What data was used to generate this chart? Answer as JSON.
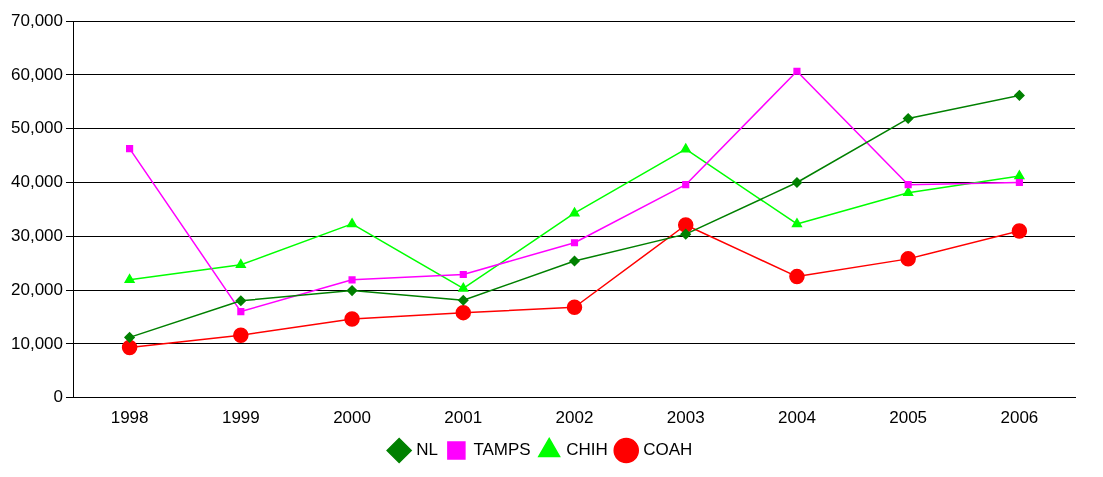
{
  "chart_data": {
    "type": "line",
    "categories": [
      "1998",
      "1999",
      "2000",
      "2001",
      "2002",
      "2003",
      "2004",
      "2005",
      "2006"
    ],
    "ylim": [
      0,
      70000
    ],
    "yticks": [
      0,
      {
        "value": 10000,
        "label": "10,000"
      },
      {
        "value": 20000,
        "label": "20,000"
      },
      {
        "value": 30000,
        "label": "30,000"
      },
      {
        "value": 40000,
        "label": "40,000"
      },
      {
        "value": 50000,
        "label": "50,000"
      },
      {
        "value": 60000,
        "label": "60,000"
      },
      {
        "value": 70000,
        "label": "70,000"
      }
    ],
    "grid": "y",
    "legend": "bottom",
    "series": [
      {
        "name": "NL",
        "color": "#008000",
        "marker": "diamond",
        "values": [
          11200,
          18000,
          19900,
          18100,
          25400,
          30400,
          40000,
          51900,
          56200
        ]
      },
      {
        "name": "TAMPS",
        "color": "#ff00ff",
        "marker": "square",
        "values": [
          46300,
          16000,
          21900,
          22900,
          28800,
          39600,
          60700,
          39600,
          40000
        ]
      },
      {
        "name": "CHIH",
        "color": "#00ff00",
        "marker": "triangle",
        "values": [
          21900,
          24700,
          32300,
          20300,
          34300,
          46200,
          32300,
          38100,
          41200
        ]
      },
      {
        "name": "COAH",
        "color": "#ff0000",
        "marker": "circle",
        "values": [
          9300,
          11600,
          14600,
          15800,
          16800,
          32100,
          22500,
          25800,
          31000
        ]
      }
    ]
  }
}
